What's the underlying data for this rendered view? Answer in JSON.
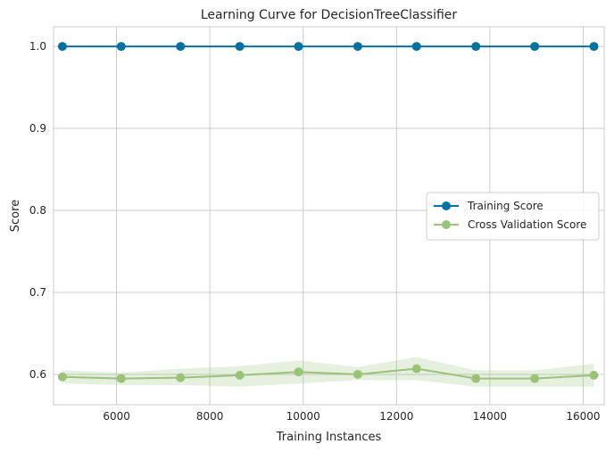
{
  "chart_data": {
    "type": "line",
    "title": "Learning Curve for DecisionTreeClassifier",
    "xlabel": "Training Instances",
    "ylabel": "Score",
    "xlim": [
      4650,
      16450
    ],
    "ylim": [
      0.563,
      1.024
    ],
    "x_ticks": [
      6000,
      8000,
      10000,
      12000,
      14000,
      16000
    ],
    "x_tick_labels": [
      "6000",
      "8000",
      "10000",
      "12000",
      "14000",
      "16000"
    ],
    "y_ticks": [
      0.6,
      0.7,
      0.8,
      0.9,
      1.0
    ],
    "y_tick_labels": [
      "0.6",
      "0.7",
      "0.8",
      "0.9",
      "1.0"
    ],
    "grid": true,
    "legend_position": "center-right",
    "x": [
      4840,
      6100,
      7370,
      8640,
      9900,
      11170,
      12430,
      13700,
      14960,
      16230
    ],
    "series": [
      {
        "name": "Training Score",
        "color": "#0072a2",
        "values": [
          1.0,
          1.0,
          1.0,
          1.0,
          1.0,
          1.0,
          1.0,
          1.0,
          1.0,
          1.0
        ],
        "band_lower": [
          1.0,
          1.0,
          1.0,
          1.0,
          1.0,
          1.0,
          1.0,
          1.0,
          1.0,
          1.0
        ],
        "band_upper": [
          1.0,
          1.0,
          1.0,
          1.0,
          1.0,
          1.0,
          1.0,
          1.0,
          1.0,
          1.0
        ]
      },
      {
        "name": "Cross Validation Score",
        "color": "#9cc27a",
        "values": [
          0.597,
          0.595,
          0.596,
          0.599,
          0.603,
          0.6,
          0.607,
          0.595,
          0.595,
          0.599
        ],
        "band_lower": [
          0.589,
          0.587,
          0.587,
          0.585,
          0.589,
          0.593,
          0.593,
          0.585,
          0.585,
          0.585
        ],
        "band_upper": [
          0.605,
          0.602,
          0.607,
          0.61,
          0.617,
          0.609,
          0.621,
          0.605,
          0.605,
          0.613
        ]
      }
    ]
  }
}
